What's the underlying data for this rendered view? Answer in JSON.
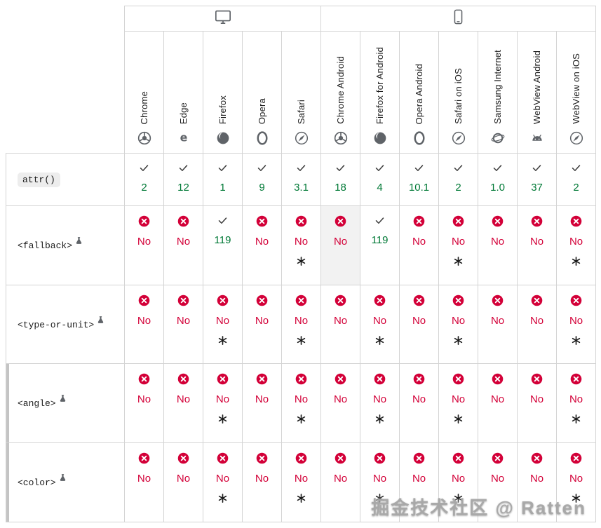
{
  "watermark": "掘金技术社区 @ Ratten",
  "colors": {
    "supported_text": "#007936",
    "unsupported_text": "#d30038",
    "unsupported_icon": "#d30038",
    "border": "#d4d4d4",
    "cell_highlight": "#f2f2f2"
  },
  "header": {
    "groups": [
      {
        "name": "desktop",
        "span": 5
      },
      {
        "name": "mobile",
        "span": 7
      }
    ],
    "browsers": [
      {
        "label": "Chrome",
        "icon": "chrome"
      },
      {
        "label": "Edge",
        "icon": "edge"
      },
      {
        "label": "Firefox",
        "icon": "firefox"
      },
      {
        "label": "Opera",
        "icon": "opera"
      },
      {
        "label": "Safari",
        "icon": "safari"
      },
      {
        "label": "Chrome Android",
        "icon": "chrome"
      },
      {
        "label": "Firefox for Android",
        "icon": "firefox"
      },
      {
        "label": "Opera Android",
        "icon": "opera"
      },
      {
        "label": "Safari on iOS",
        "icon": "safari"
      },
      {
        "label": "Samsung Internet",
        "icon": "samsung"
      },
      {
        "label": "WebView Android",
        "icon": "android"
      },
      {
        "label": "WebView on iOS",
        "icon": "safari"
      }
    ]
  },
  "rows": [
    {
      "feature": "attr()",
      "code_pill": true,
      "experimental": false,
      "indented": false,
      "cells": [
        {
          "support": "yes",
          "label": "2",
          "note": false,
          "highlight": false
        },
        {
          "support": "yes",
          "label": "12",
          "note": false,
          "highlight": false
        },
        {
          "support": "yes",
          "label": "1",
          "note": false,
          "highlight": false
        },
        {
          "support": "yes",
          "label": "9",
          "note": false,
          "highlight": false
        },
        {
          "support": "yes",
          "label": "3.1",
          "note": false,
          "highlight": false
        },
        {
          "support": "yes",
          "label": "18",
          "note": false,
          "highlight": false
        },
        {
          "support": "yes",
          "label": "4",
          "note": false,
          "highlight": false
        },
        {
          "support": "yes",
          "label": "10.1",
          "note": false,
          "highlight": false
        },
        {
          "support": "yes",
          "label": "2",
          "note": false,
          "highlight": false
        },
        {
          "support": "yes",
          "label": "1.0",
          "note": false,
          "highlight": false
        },
        {
          "support": "yes",
          "label": "37",
          "note": false,
          "highlight": false
        },
        {
          "support": "yes",
          "label": "2",
          "note": false,
          "highlight": false
        }
      ]
    },
    {
      "feature": "<fallback>",
      "code_pill": false,
      "experimental": true,
      "indented": false,
      "cells": [
        {
          "support": "no",
          "label": "No",
          "note": false,
          "highlight": false
        },
        {
          "support": "no",
          "label": "No",
          "note": false,
          "highlight": false
        },
        {
          "support": "yes",
          "label": "119",
          "note": false,
          "highlight": false
        },
        {
          "support": "no",
          "label": "No",
          "note": false,
          "highlight": false
        },
        {
          "support": "no",
          "label": "No",
          "note": true,
          "highlight": false
        },
        {
          "support": "no",
          "label": "No",
          "note": false,
          "highlight": true
        },
        {
          "support": "yes",
          "label": "119",
          "note": false,
          "highlight": false
        },
        {
          "support": "no",
          "label": "No",
          "note": false,
          "highlight": false
        },
        {
          "support": "no",
          "label": "No",
          "note": true,
          "highlight": false
        },
        {
          "support": "no",
          "label": "No",
          "note": false,
          "highlight": false
        },
        {
          "support": "no",
          "label": "No",
          "note": false,
          "highlight": false
        },
        {
          "support": "no",
          "label": "No",
          "note": true,
          "highlight": false
        }
      ]
    },
    {
      "feature": "<type-or-unit>",
      "code_pill": false,
      "experimental": true,
      "indented": false,
      "cells": [
        {
          "support": "no",
          "label": "No",
          "note": false,
          "highlight": false
        },
        {
          "support": "no",
          "label": "No",
          "note": false,
          "highlight": false
        },
        {
          "support": "no",
          "label": "No",
          "note": true,
          "highlight": false
        },
        {
          "support": "no",
          "label": "No",
          "note": false,
          "highlight": false
        },
        {
          "support": "no",
          "label": "No",
          "note": true,
          "highlight": false
        },
        {
          "support": "no",
          "label": "No",
          "note": false,
          "highlight": false
        },
        {
          "support": "no",
          "label": "No",
          "note": true,
          "highlight": false
        },
        {
          "support": "no",
          "label": "No",
          "note": false,
          "highlight": false
        },
        {
          "support": "no",
          "label": "No",
          "note": true,
          "highlight": false
        },
        {
          "support": "no",
          "label": "No",
          "note": false,
          "highlight": false
        },
        {
          "support": "no",
          "label": "No",
          "note": false,
          "highlight": false
        },
        {
          "support": "no",
          "label": "No",
          "note": true,
          "highlight": false
        }
      ]
    },
    {
      "feature": "<angle>",
      "code_pill": false,
      "experimental": true,
      "indented": true,
      "cells": [
        {
          "support": "no",
          "label": "No",
          "note": false,
          "highlight": false
        },
        {
          "support": "no",
          "label": "No",
          "note": false,
          "highlight": false
        },
        {
          "support": "no",
          "label": "No",
          "note": true,
          "highlight": false
        },
        {
          "support": "no",
          "label": "No",
          "note": false,
          "highlight": false
        },
        {
          "support": "no",
          "label": "No",
          "note": true,
          "highlight": false
        },
        {
          "support": "no",
          "label": "No",
          "note": false,
          "highlight": false
        },
        {
          "support": "no",
          "label": "No",
          "note": true,
          "highlight": false
        },
        {
          "support": "no",
          "label": "No",
          "note": false,
          "highlight": false
        },
        {
          "support": "no",
          "label": "No",
          "note": true,
          "highlight": false
        },
        {
          "support": "no",
          "label": "No",
          "note": false,
          "highlight": false
        },
        {
          "support": "no",
          "label": "No",
          "note": false,
          "highlight": false
        },
        {
          "support": "no",
          "label": "No",
          "note": true,
          "highlight": false
        }
      ]
    },
    {
      "feature": "<color>",
      "code_pill": false,
      "experimental": true,
      "indented": true,
      "cells": [
        {
          "support": "no",
          "label": "No",
          "note": false,
          "highlight": false
        },
        {
          "support": "no",
          "label": "No",
          "note": false,
          "highlight": false
        },
        {
          "support": "no",
          "label": "No",
          "note": true,
          "highlight": false
        },
        {
          "support": "no",
          "label": "No",
          "note": false,
          "highlight": false
        },
        {
          "support": "no",
          "label": "No",
          "note": true,
          "highlight": false
        },
        {
          "support": "no",
          "label": "No",
          "note": false,
          "highlight": false
        },
        {
          "support": "no",
          "label": "No",
          "note": true,
          "highlight": false
        },
        {
          "support": "no",
          "label": "No",
          "note": false,
          "highlight": false
        },
        {
          "support": "no",
          "label": "No",
          "note": true,
          "highlight": false
        },
        {
          "support": "no",
          "label": "No",
          "note": false,
          "highlight": false
        },
        {
          "support": "no",
          "label": "No",
          "note": false,
          "highlight": false
        },
        {
          "support": "no",
          "label": "No",
          "note": true,
          "highlight": false
        }
      ]
    }
  ]
}
